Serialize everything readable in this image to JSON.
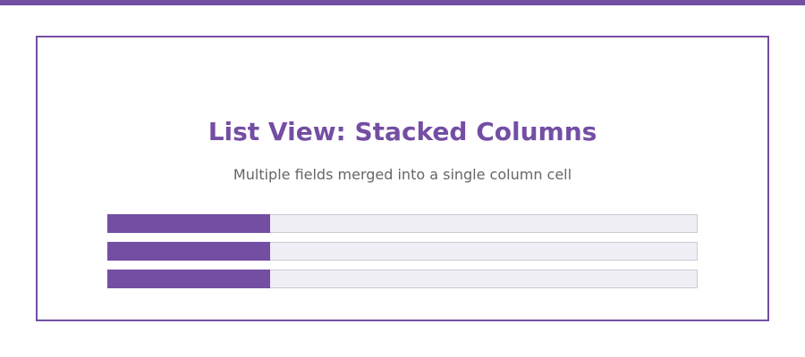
{
  "colors": {
    "accent": "#744ea3",
    "track": "#efeff5",
    "title_text": "#744ea3",
    "subtitle_text": "#666666"
  },
  "card": {
    "title": "List View: Stacked Columns",
    "subtitle": "Multiple fields merged into a single column cell"
  },
  "rows": [
    {
      "fill_fraction": 0.275
    },
    {
      "fill_fraction": 0.275
    },
    {
      "fill_fraction": 0.275
    }
  ]
}
